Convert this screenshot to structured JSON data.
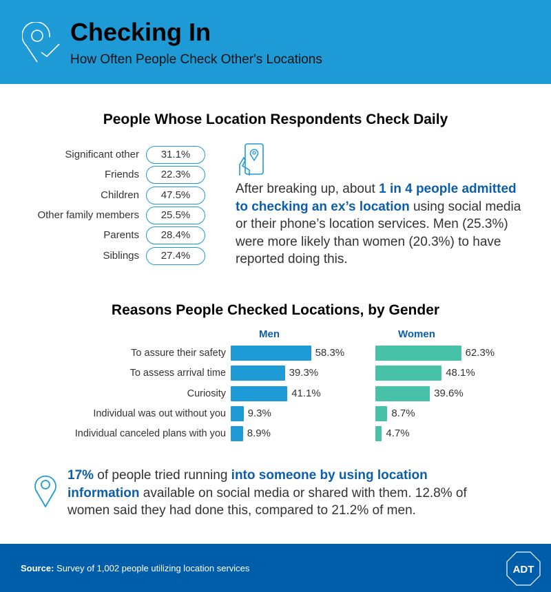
{
  "header": {
    "title": "Checking In",
    "subtitle": "How Often People Check Other's Locations",
    "icon": "location-pin-check-icon"
  },
  "daily": {
    "heading": "People Whose Location Respondents Check Daily",
    "items": [
      {
        "label": "Significant other",
        "value": "31.1%"
      },
      {
        "label": "Friends",
        "value": "22.3%"
      },
      {
        "label": "Children",
        "value": "47.5%"
      },
      {
        "label": "Other family members",
        "value": "25.5%"
      },
      {
        "label": "Parents",
        "value": "28.4%"
      },
      {
        "label": "Siblings",
        "value": "27.4%"
      }
    ]
  },
  "ex_fact": {
    "icon": "phone-location-icon",
    "t1": "After breaking up, about ",
    "h1": "1 in 4 people admitted to checking an ex’s location",
    "t2": " using social media or their phone’s location services. Men (25.3%) were more likely than women (20.3%) to have reported doing this."
  },
  "chart_data": {
    "type": "bar",
    "title": "Reasons People Checked Locations, by Gender",
    "categories": [
      "To assure their safety",
      "To assess arrival time",
      "Curiosity",
      "Individual was out without you",
      "Individual canceled plans with you"
    ],
    "series": [
      {
        "name": "Men",
        "values": [
          58.3,
          39.3,
          41.1,
          9.3,
          8.9
        ],
        "labels": [
          "58.3%",
          "39.3%",
          "41.1%",
          "9.3%",
          "8.9%"
        ],
        "color": "#1e9ad6"
      },
      {
        "name": "Women",
        "values": [
          62.3,
          48.1,
          39.6,
          8.7,
          4.7
        ],
        "labels": [
          "62.3%",
          "48.1%",
          "39.6%",
          "8.7%",
          "4.7%"
        ],
        "color": "#47c1a8"
      }
    ],
    "unit": "%"
  },
  "run_fact": {
    "icon": "location-pin-icon",
    "h1": "17%",
    "t1": " of people tried running ",
    "h2": "into someone by using location information",
    "t2": " available on social media or shared with them. 12.8% of women said they had done this, compared to 21.2% of men."
  },
  "footer": {
    "source_label": "Source:",
    "source_text": " Survey of 1,002 people utilizing location services",
    "logo": "ADT"
  },
  "colors": {
    "header": "#1e9ad6",
    "footer": "#005daa",
    "accent": "#0c5ea8",
    "men": "#1e9ad6",
    "women": "#47c1a8"
  }
}
